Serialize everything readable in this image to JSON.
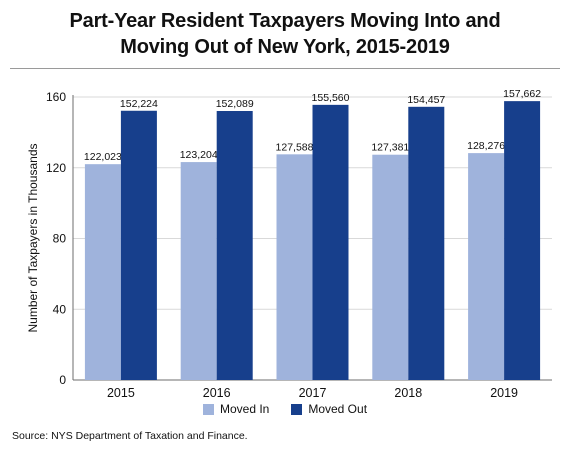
{
  "title_line1": "Part-Year Resident Taxpayers Moving Into and",
  "title_line2": "Moving Out of New York, 2015-2019",
  "source": "Source: NYS Department of Taxation and Finance.",
  "colors": {
    "moved_in": "#9fb3dc",
    "moved_out": "#173f8c",
    "grid": "#d9d9d9",
    "axis": "#6e6e6e"
  },
  "chart_data": {
    "type": "bar",
    "title": "Part-Year Resident Taxpayers Moving Into and Moving Out of New York, 2015-2019",
    "xlabel": "",
    "ylabel": "Number of Taxpayers in Thousands",
    "categories": [
      "2015",
      "2016",
      "2017",
      "2018",
      "2019"
    ],
    "ylim": [
      0,
      160
    ],
    "yticks": [
      0,
      40,
      80,
      120,
      160
    ],
    "grid": true,
    "legend_placement": "bottom",
    "series": [
      {
        "name": "Moved In",
        "values": [
          122.023,
          123.204,
          127.588,
          127.381,
          128.276
        ],
        "labels": [
          "122,023",
          "123,204",
          "127,588",
          "127,381",
          "128,276"
        ]
      },
      {
        "name": "Moved Out",
        "values": [
          152.224,
          152.089,
          155.56,
          154.457,
          157.662
        ],
        "labels": [
          "152,224",
          "152,089",
          "155,560",
          "154,457",
          "157,662"
        ]
      }
    ]
  }
}
